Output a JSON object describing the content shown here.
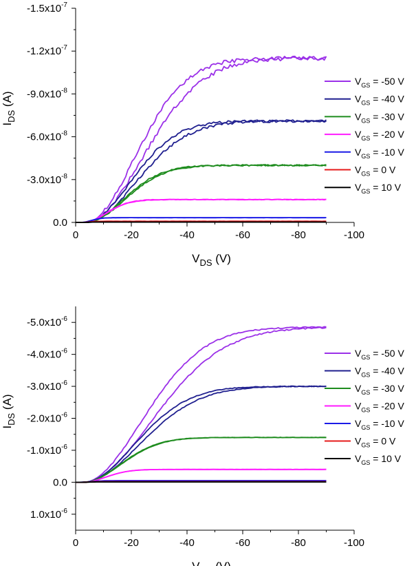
{
  "chart_data": [
    {
      "type": "line",
      "title": "",
      "xlabel": {
        "main": "V",
        "sub": "DS",
        "unit": " (V)"
      },
      "ylabel": {
        "main": "I",
        "sub": "DS",
        "unit": " (A)"
      },
      "xlim": [
        0,
        -100
      ],
      "ylim": [
        0,
        -1.5e-07
      ],
      "x_ticks": [
        0,
        -20,
        -40,
        -60,
        -80,
        -100
      ],
      "x_tick_labels": [
        "0",
        "-20",
        "-40",
        "-60",
        "-80",
        "-100"
      ],
      "y_ticks": [
        0,
        -3e-08,
        -6e-08,
        -9e-08,
        -1.2e-07,
        -1.5e-07
      ],
      "y_tick_labels": [
        {
          "mant": "0.0",
          "exp": ""
        },
        {
          "mant": "-3.0x10",
          "exp": "-8"
        },
        {
          "mant": "-6.0x10",
          "exp": "-8"
        },
        {
          "mant": "-9.0x10",
          "exp": "-8"
        },
        {
          "mant": "-1.2x10",
          "exp": "-7"
        },
        {
          "mant": "-1.5x10",
          "exp": "-7"
        }
      ],
      "legend_position": "right",
      "series": [
        {
          "name": "V_GS = -50 V",
          "legend": {
            "v": "V",
            "sub": "GS",
            "text": " = -50 V"
          },
          "color": "#9B30E8",
          "isat": -1.15e-07,
          "vt": 4,
          "knee": 40,
          "hysteresis": 0.16
        },
        {
          "name": "V_GS = -40 V",
          "legend": {
            "v": "V",
            "sub": "GS",
            "text": " = -40 V"
          },
          "color": "#1F1F8F",
          "isat": -7.1e-08,
          "vt": 4,
          "knee": 36,
          "hysteresis": 0.13
        },
        {
          "name": "V_GS = -30 V",
          "legend": {
            "v": "V",
            "sub": "GS",
            "text": " = -30 V"
          },
          "color": "#1E8C1E",
          "isat": -4e-08,
          "vt": 4,
          "knee": 30,
          "hysteresis": 0.04
        },
        {
          "name": "V_GS = -20 V",
          "legend": {
            "v": "V",
            "sub": "GS",
            "text": " = -20 V"
          },
          "color": "#FF1AFF",
          "isat": -1.6e-08,
          "vt": 3,
          "knee": 18,
          "hysteresis": 0.03
        },
        {
          "name": "V_GS = -10 V",
          "legend": {
            "v": "V",
            "sub": "GS",
            "text": " = -10 V"
          },
          "color": "#1A1AE6",
          "isat": -3.3e-09,
          "vt": 2,
          "knee": 8,
          "hysteresis": 0.05
        },
        {
          "name": "V_GS = 0 V",
          "legend": {
            "v": "V",
            "sub": "GS",
            "text": " = 0 V"
          },
          "color": "#E61A1A",
          "isat": -8e-10,
          "vt": 2,
          "knee": 6,
          "hysteresis": 0.05
        },
        {
          "name": "V_GS = 10 V",
          "legend": {
            "v": "V",
            "sub": "GS",
            "text": " = 10 V"
          },
          "color": "#000000",
          "isat": -3e-10,
          "vt": 2,
          "knee": 6,
          "hysteresis": 0.05
        }
      ]
    },
    {
      "type": "line",
      "title": "",
      "xlabel": {
        "main": "V",
        "sub": "DS",
        "unit": " (V)"
      },
      "ylabel": {
        "main": "I",
        "sub": "DS",
        "unit": " (A)"
      },
      "xlim": [
        0,
        -100
      ],
      "ylim": [
        1.5e-06,
        -5.5e-06
      ],
      "x_ticks": [
        0,
        -20,
        -40,
        -60,
        -80,
        -100
      ],
      "x_tick_labels": [
        "0",
        "-20",
        "-40",
        "-60",
        "-80",
        "-100"
      ],
      "y_ticks": [
        1e-06,
        0,
        -1e-06,
        -2e-06,
        -3e-06,
        -4e-06,
        -5e-06
      ],
      "y_tick_labels": [
        {
          "mant": "1.0x10",
          "exp": "-6"
        },
        {
          "mant": "0.0",
          "exp": ""
        },
        {
          "mant": "-1.0x10",
          "exp": "-6"
        },
        {
          "mant": "-2.0x10",
          "exp": "-6"
        },
        {
          "mant": "-3.0x10",
          "exp": "-6"
        },
        {
          "mant": "-4.0x10",
          "exp": "-6"
        },
        {
          "mant": "-5.0x10",
          "exp": "-6"
        }
      ],
      "legend_position": "right",
      "series": [
        {
          "name": "V_GS = -50 V",
          "legend": {
            "v": "V",
            "sub": "GS",
            "text": " = -50 V"
          },
          "color": "#9B30E8",
          "isat": -4.85e-06,
          "vt": 3,
          "knee": 48,
          "hysteresis": 0.17
        },
        {
          "name": "V_GS = -40 V",
          "legend": {
            "v": "V",
            "sub": "GS",
            "text": " = -40 V"
          },
          "color": "#1F1F8F",
          "isat": -3e-06,
          "vt": 3,
          "knee": 42,
          "hysteresis": 0.1
        },
        {
          "name": "V_GS = -30 V",
          "legend": {
            "v": "V",
            "sub": "GS",
            "text": " = -30 V"
          },
          "color": "#1E8C1E",
          "isat": -1.4e-06,
          "vt": 3,
          "knee": 30,
          "hysteresis": 0.02
        },
        {
          "name": "V_GS = -20 V",
          "legend": {
            "v": "V",
            "sub": "GS",
            "text": " = -20 V"
          },
          "color": "#FF1AFF",
          "isat": -4e-07,
          "vt": 3,
          "knee": 18,
          "hysteresis": 0.0
        },
        {
          "name": "V_GS = -10 V",
          "legend": {
            "v": "V",
            "sub": "GS",
            "text": " = -10 V"
          },
          "color": "#1A1AE6",
          "isat": -5e-08,
          "vt": 2,
          "knee": 8,
          "hysteresis": 0.0
        },
        {
          "name": "V_GS = 0 V",
          "legend": {
            "v": "V",
            "sub": "GS",
            "text": " = 0 V"
          },
          "color": "#E61A1A",
          "isat": -2e-08,
          "vt": 2,
          "knee": 6,
          "hysteresis": 0.0
        },
        {
          "name": "V_GS = 10 V",
          "legend": {
            "v": "V",
            "sub": "GS",
            "text": " = 10 V"
          },
          "color": "#000000",
          "isat": -1e-08,
          "vt": 2,
          "knee": 6,
          "hysteresis": 0.0
        }
      ]
    }
  ]
}
